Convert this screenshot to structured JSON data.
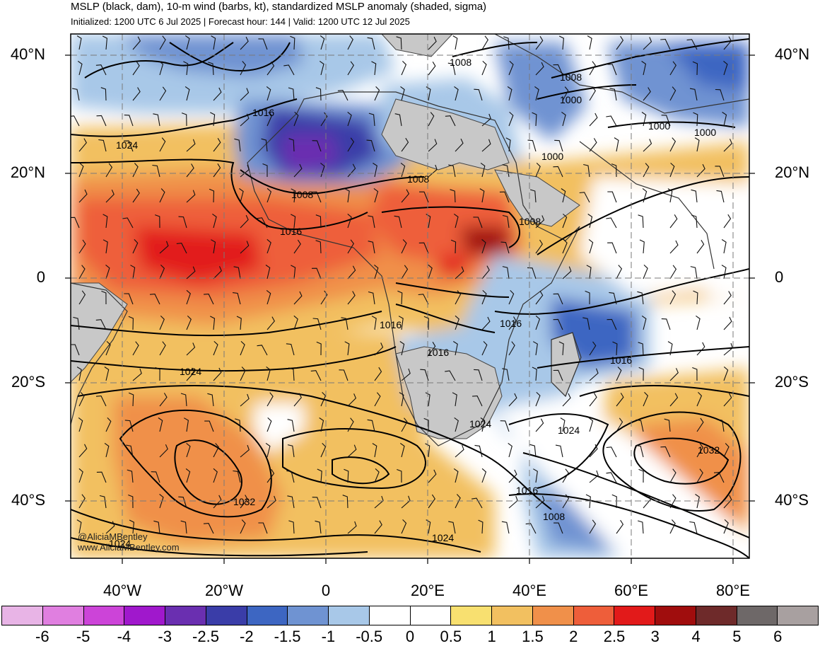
{
  "title": "MSLP (black, dam), 10-m wind (barbs, kt), standardized MSLP anomaly (shaded, sigma)",
  "subtitle": "Initialized: 1200 UTC 6 Jul 2025 | Forecast hour: 144 | Valid: 1200 UTC 12 Jul 2025",
  "lat_labels": [
    "40°N",
    "20°N",
    "0",
    "20°S",
    "40°S"
  ],
  "lon_labels": [
    "40°W",
    "20°W",
    "0",
    "20°E",
    "40°E",
    "60°E",
    "80°E"
  ],
  "credit": {
    "handle": "@AliciaMBentley",
    "website": "www.AliciaMBentley.com"
  },
  "contour_labels": [
    "1008",
    "1008",
    "1000",
    "1016",
    "1024",
    "1008",
    "1008",
    "1000",
    "1000",
    "1000",
    "1016",
    "1008",
    "1016",
    "1016",
    "1016",
    "1024",
    "1016",
    "1024",
    "1024",
    "1032",
    "1032",
    "1016",
    "1008",
    "1024",
    "1024"
  ],
  "colorbar": {
    "ticks": [
      "-6",
      "-5",
      "-4",
      "-3",
      "-2.5",
      "-2",
      "-1.5",
      "-1",
      "-0.5",
      "0",
      "0.5",
      "1",
      "1.5",
      "2",
      "2.5",
      "3",
      "4",
      "5",
      "6"
    ],
    "colors": [
      "#e8b4e6",
      "#e07fe0",
      "#cc44d8",
      "#a018cc",
      "#6a2fb0",
      "#3a3da8",
      "#3d66c2",
      "#6f93d2",
      "#a8c8e8",
      "#ffffff",
      "#ffffff",
      "#f8e070",
      "#f2c060",
      "#f0904a",
      "#ee5e3a",
      "#e21a1a",
      "#a00d0d",
      "#6e2a2a",
      "#6e6868",
      "#a8a0a0"
    ]
  }
}
